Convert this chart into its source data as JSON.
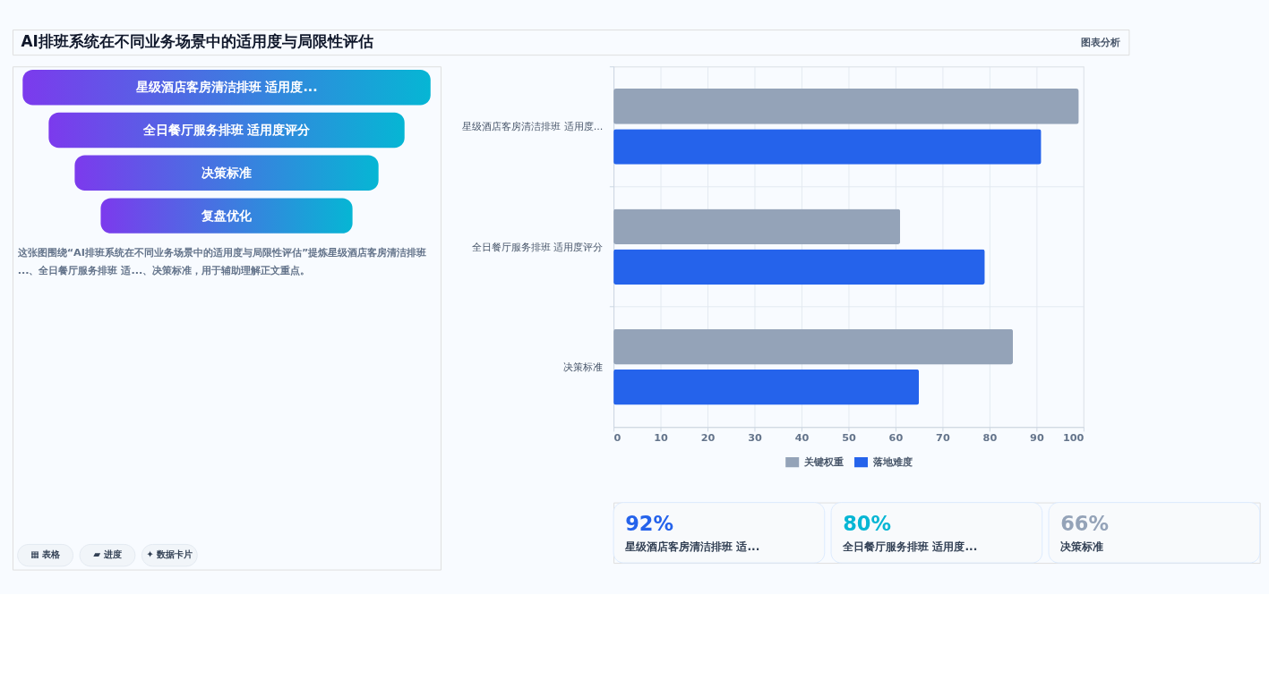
{
  "chart_data": [
    {
      "type": "other",
      "title": "AI排班系统在不同业务场景中的适用度与局限性评估",
      "annotations": [
        "图表分析"
      ]
    },
    {
      "type": "other",
      "categories": [
        "星级酒店客房清洁排班 适用度...",
        "全日餐厅服务排班 适用度评分",
        "决策标准",
        "复盘优化"
      ],
      "annotations": [
        "这张图围绕“AI排班系统在不同业务场景中的适用度与局限性评估”提炼星级酒店客房清洁排班...、全日餐厅服务排班 适...、决策标准，用于辅助理解正文重点。",
        "▦ 表格",
        "▰ 进度",
        "✦ 数据卡片"
      ]
    },
    {
      "type": "bar",
      "orientation": "horizontal",
      "categories": [
        "星级酒店客房清洁排班 适用度...",
        "全日餐厅服务排班 适用度评分",
        "决策标准"
      ],
      "series": [
        {
          "name": "关键权重",
          "color": "#94a3b8",
          "values": [
            99,
            61,
            85
          ]
        },
        {
          "name": "落地难度",
          "color": "#2563eb",
          "values": [
            91,
            79,
            65
          ]
        }
      ],
      "xlim": [
        0,
        100
      ],
      "xticks": [
        0,
        10,
        20,
        30,
        40,
        50,
        60,
        70,
        80,
        90,
        100
      ],
      "grid": true,
      "legend": "bottom"
    },
    {
      "type": "other",
      "annotations": [
        "92%",
        "星级酒店客房清洁排班 适...",
        "80%",
        "全日餐厅服务排班 适用度...",
        "66%",
        "决策标准"
      ]
    }
  ]
}
